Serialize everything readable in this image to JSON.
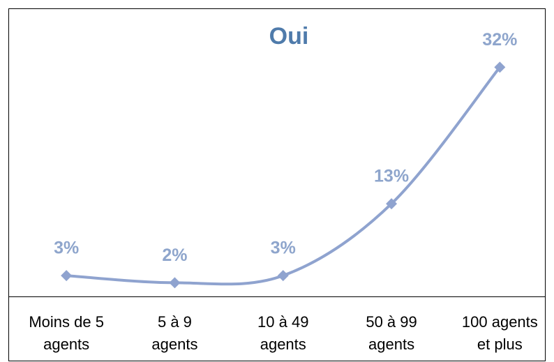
{
  "chart_data": {
    "type": "line",
    "title": "Oui",
    "categories": [
      [
        "Moins de 5",
        "agents"
      ],
      [
        "5 à 9",
        "agents"
      ],
      [
        "10 à 49",
        "agents"
      ],
      [
        "50 à 99",
        "agents"
      ],
      [
        "100 agents",
        "et plus"
      ]
    ],
    "values": [
      3,
      2,
      3,
      13,
      32
    ],
    "value_labels": [
      "3%",
      "2%",
      "3%",
      "13%",
      "32%"
    ],
    "color": "#8fa3cf",
    "title_color": "#4f7bab",
    "label_color": "#8ea5cc",
    "ylim": [
      0,
      40
    ],
    "smooth": true
  }
}
